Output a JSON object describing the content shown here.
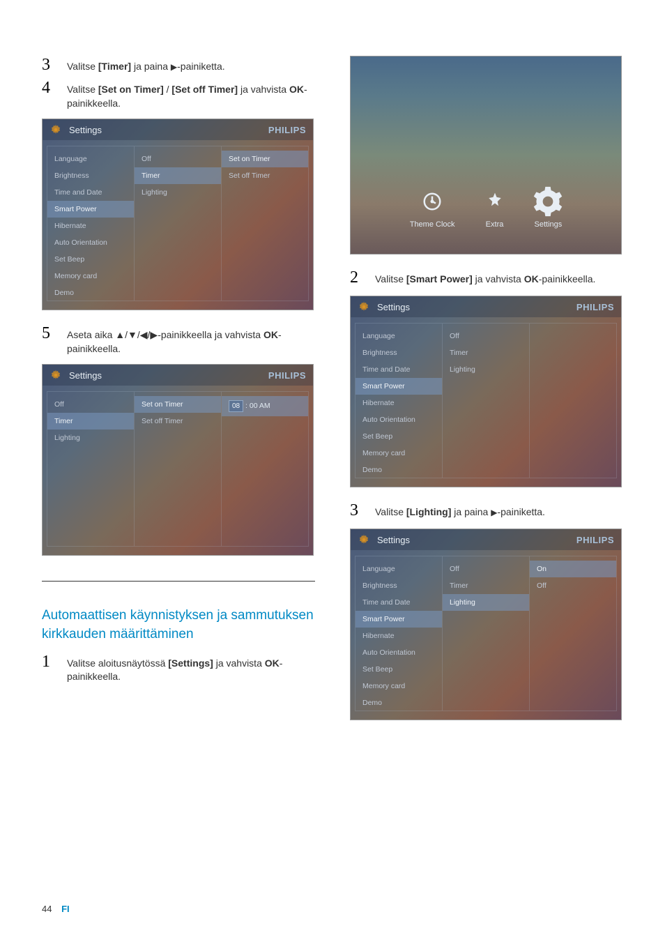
{
  "footer": {
    "page": "44",
    "lang": "FI"
  },
  "steps_left": {
    "s3": {
      "num": "3",
      "prefix": "Valitse ",
      "bold": "[Timer]",
      "mid": " ja paina ",
      "arrow": "▶",
      "suffix": "-painiketta."
    },
    "s4": {
      "num": "4",
      "prefix": "Valitse ",
      "bold1": "[Set on Timer]",
      "sep": " / ",
      "bold2": "[Set off Timer]",
      "mid": " ja vahvista ",
      "bold3": "OK",
      "suffix": "-painikkeella."
    },
    "s5": {
      "num": "5",
      "prefix": "Aseta aika ",
      "arrows": "▲/▼/◀/▶",
      "mid": "-painikkeella ja vahvista ",
      "bold": "OK",
      "suffix": "-painikkeella."
    }
  },
  "section": {
    "heading": "Automaattisen käynnistyksen ja sammutuksen kirkkauden määrittäminen",
    "s1": {
      "num": "1",
      "prefix": "Valitse aloitusnäytössä ",
      "bold1": "[Settings]",
      "mid": " ja vahvista ",
      "bold2": "OK",
      "suffix": "-painikkeella."
    }
  },
  "steps_right": {
    "s2": {
      "num": "2",
      "prefix": "Valitse ",
      "bold1": "[Smart Power]",
      "mid": " ja vahvista ",
      "bold2": "OK",
      "suffix": "-painikkeella."
    },
    "s3": {
      "num": "3",
      "prefix": "Valitse ",
      "bold1": "[Lighting]",
      "mid": " ja paina ",
      "arrow": "▶",
      "suffix": "-painiketta."
    }
  },
  "panel_common": {
    "title": "Settings",
    "brand": "PHILIPS",
    "left_items": [
      "Language",
      "Brightness",
      "Time and Date",
      "Smart Power",
      "Hibernate",
      "Auto Orientation",
      "Set Beep",
      "Memory card",
      "Demo"
    ]
  },
  "panel1": {
    "mid_items": [
      "Off",
      "Timer",
      "Lighting"
    ],
    "mid_hl_index": 1,
    "left_hl_index": 3,
    "right_items": [
      "Set on Timer",
      "Set off Timer"
    ],
    "right_hl_index": 0
  },
  "panel2": {
    "left_items": [
      "Off",
      "Timer",
      "Lighting"
    ],
    "left_hl_index": 1,
    "mid_items": [
      "Set on Timer",
      "Set off Timer"
    ],
    "mid_hl_index": 0,
    "time": {
      "hh": "08",
      "sep": ":",
      "mm": "00",
      "ampm": "AM"
    }
  },
  "iconmenu": {
    "items": [
      {
        "label": "Theme Clock",
        "name": "theme-clock-icon"
      },
      {
        "label": "Extra",
        "name": "extra-icon"
      },
      {
        "label": "Settings",
        "name": "settings-icon"
      }
    ],
    "hl_index": 2
  },
  "panel3": {
    "left_hl_index": 3,
    "mid_items": [
      "Off",
      "Timer",
      "Lighting"
    ],
    "mid_hl_index": -1
  },
  "panel4": {
    "left_hl_index": 3,
    "mid_items": [
      "Off",
      "Timer",
      "Lighting"
    ],
    "mid_hl_index": 2,
    "right_items": [
      "On",
      "Off"
    ],
    "right_hl_index": 0
  },
  "colors": {
    "heading": "#0089c4",
    "text": "#333333",
    "panel_item": "#c0c8d4",
    "panel_hl_bg": "rgba(120,150,190,0.55)"
  }
}
